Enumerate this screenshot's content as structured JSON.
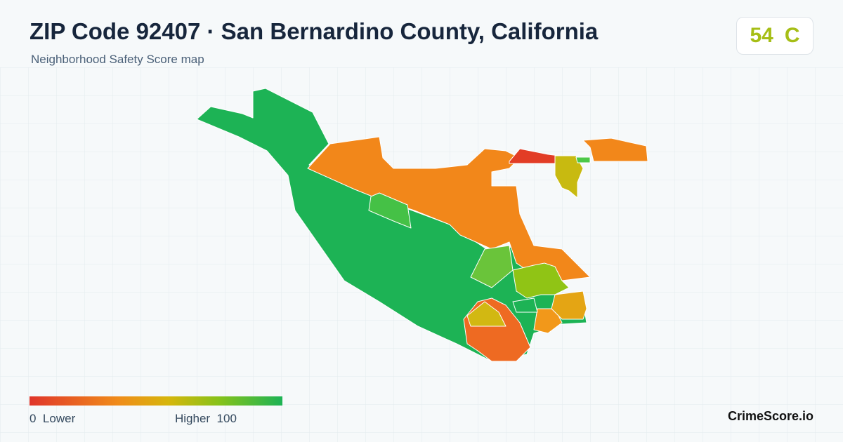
{
  "header": {
    "title": "ZIP Code 92407 · San Bernardino County, California",
    "subtitle": "Neighborhood Safety Score map"
  },
  "score": {
    "value": 54,
    "grade": "C"
  },
  "legend": {
    "min": 0,
    "min_label": "Lower",
    "max_label": "Higher",
    "max": 100
  },
  "brand": "CrimeScore.io"
}
